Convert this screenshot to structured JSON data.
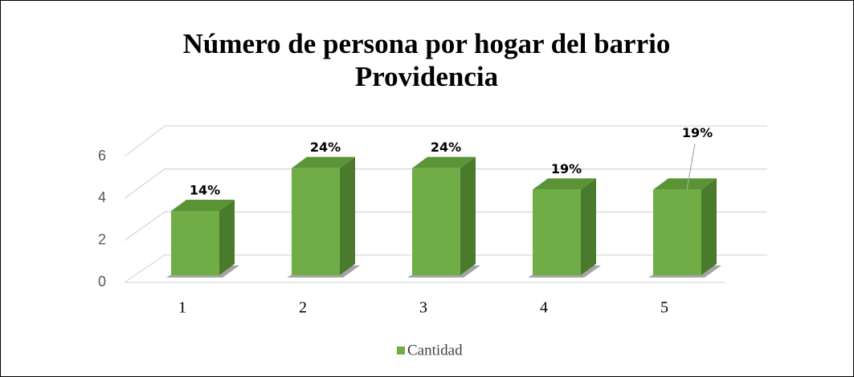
{
  "chart_data": {
    "type": "bar3d",
    "title": "Número de persona por hogar del barrio Providencia",
    "categories": [
      "1",
      "2",
      "3",
      "4",
      "5"
    ],
    "series": [
      {
        "name": "Cantidad",
        "color": "#70ad47",
        "values": [
          3,
          5,
          5,
          4,
          4
        ],
        "value_labels": [
          "14%",
          "24%",
          "24%",
          "19%",
          "19%"
        ]
      }
    ],
    "ylim": [
      0,
      6
    ],
    "yticks": [
      0,
      2,
      4,
      6
    ],
    "grid": true,
    "legend": "bottom"
  }
}
